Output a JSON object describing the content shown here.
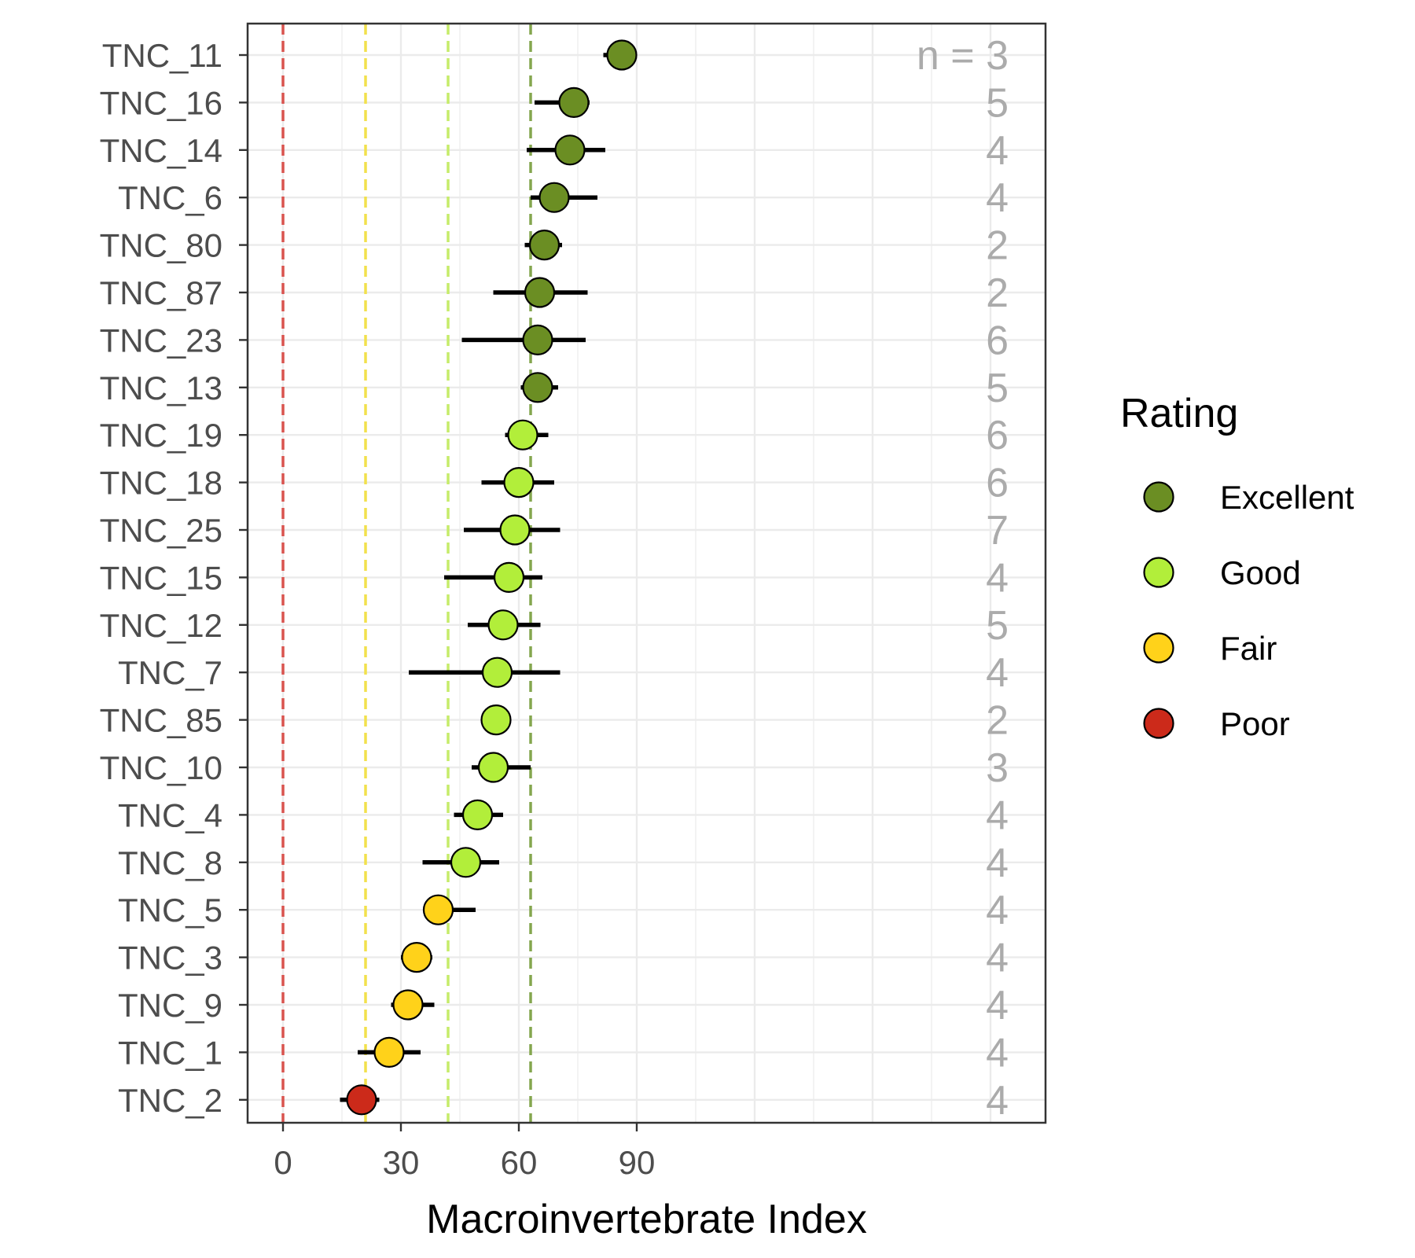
{
  "chart_data": {
    "type": "scatter",
    "xlabel": "Macroinvertebrate Index",
    "ylabel": "",
    "xlim": [
      -9,
      194
    ],
    "x_ticks": [
      0,
      30,
      60,
      90
    ],
    "grid": true,
    "legend_position": "right",
    "legend": {
      "title": "Rating",
      "items": [
        {
          "label": "Excellent",
          "color": "#6b8e23"
        },
        {
          "label": "Good",
          "color": "#b2ee3a"
        },
        {
          "label": "Fair",
          "color": "#ffd21a"
        },
        {
          "label": "Poor",
          "color": "#cc2a1a"
        }
      ]
    },
    "thresholds": [
      {
        "x": 0,
        "color": "#d9534f"
      },
      {
        "x": 21,
        "color": "#f2e14c"
      },
      {
        "x": 42,
        "color": "#c6ec6a"
      },
      {
        "x": 63,
        "color": "#84a64e"
      }
    ],
    "n_prefix": "n = ",
    "n_x": 108,
    "sites": [
      {
        "site": "TNC_11",
        "mean": 86.2,
        "low": 81.5,
        "high": 88.0,
        "n": 3,
        "rating": "Excellent"
      },
      {
        "site": "TNC_16",
        "mean": 74.0,
        "low": 64.0,
        "high": 78.0,
        "n": 5,
        "rating": "Excellent"
      },
      {
        "site": "TNC_14",
        "mean": 73.0,
        "low": 62.0,
        "high": 82.0,
        "n": 4,
        "rating": "Excellent"
      },
      {
        "site": "TNC_6",
        "mean": 69.0,
        "low": 63.0,
        "high": 80.0,
        "n": 4,
        "rating": "Excellent"
      },
      {
        "site": "TNC_80",
        "mean": 66.5,
        "low": 61.5,
        "high": 71.0,
        "n": 2,
        "rating": "Excellent"
      },
      {
        "site": "TNC_87",
        "mean": 65.3,
        "low": 53.5,
        "high": 77.5,
        "n": 2,
        "rating": "Excellent"
      },
      {
        "site": "TNC_23",
        "mean": 64.8,
        "low": 45.5,
        "high": 77.0,
        "n": 6,
        "rating": "Excellent"
      },
      {
        "site": "TNC_13",
        "mean": 64.8,
        "low": 60.5,
        "high": 70.0,
        "n": 5,
        "rating": "Excellent"
      },
      {
        "site": "TNC_19",
        "mean": 61.0,
        "low": 56.5,
        "high": 67.5,
        "n": 6,
        "rating": "Good"
      },
      {
        "site": "TNC_18",
        "mean": 60.0,
        "low": 50.5,
        "high": 69.0,
        "n": 6,
        "rating": "Good"
      },
      {
        "site": "TNC_25",
        "mean": 59.0,
        "low": 46.0,
        "high": 70.5,
        "n": 7,
        "rating": "Good"
      },
      {
        "site": "TNC_15",
        "mean": 57.5,
        "low": 41.0,
        "high": 66.0,
        "n": 4,
        "rating": "Good"
      },
      {
        "site": "TNC_12",
        "mean": 56.0,
        "low": 47.0,
        "high": 65.5,
        "n": 5,
        "rating": "Good"
      },
      {
        "site": "TNC_7",
        "mean": 54.5,
        "low": 32.0,
        "high": 70.5,
        "n": 4,
        "rating": "Good"
      },
      {
        "site": "TNC_85",
        "mean": 54.2,
        "low": 54.2,
        "high": 54.2,
        "n": 2,
        "rating": "Good"
      },
      {
        "site": "TNC_10",
        "mean": 53.5,
        "low": 48.0,
        "high": 63.0,
        "n": 3,
        "rating": "Good"
      },
      {
        "site": "TNC_4",
        "mean": 49.5,
        "low": 43.5,
        "high": 56.0,
        "n": 4,
        "rating": "Good"
      },
      {
        "site": "TNC_8",
        "mean": 46.5,
        "low": 35.5,
        "high": 55.0,
        "n": 4,
        "rating": "Good"
      },
      {
        "site": "TNC_5",
        "mean": 39.5,
        "low": 36.0,
        "high": 49.0,
        "n": 4,
        "rating": "Fair"
      },
      {
        "site": "TNC_3",
        "mean": 34.0,
        "low": 30.0,
        "high": 38.0,
        "n": 4,
        "rating": "Fair"
      },
      {
        "site": "TNC_9",
        "mean": 31.8,
        "low": 27.5,
        "high": 38.5,
        "n": 4,
        "rating": "Fair"
      },
      {
        "site": "TNC_1",
        "mean": 27.0,
        "low": 19.0,
        "high": 35.0,
        "n": 4,
        "rating": "Fair"
      },
      {
        "site": "TNC_2",
        "mean": 20.0,
        "low": 14.5,
        "high": 24.5,
        "n": 4,
        "rating": "Poor"
      }
    ]
  }
}
